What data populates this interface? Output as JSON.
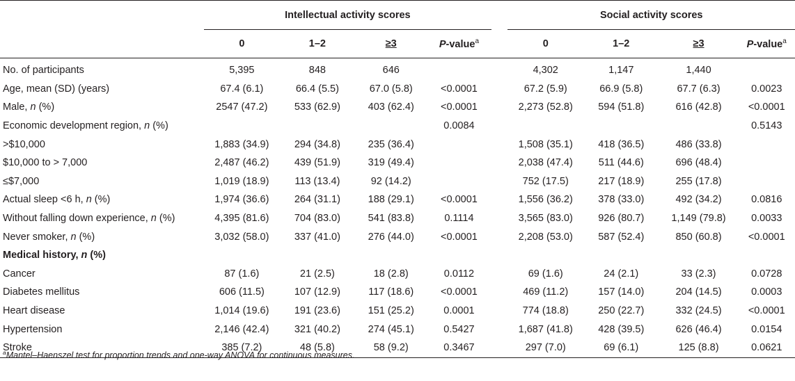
{
  "groups": {
    "intellectual": "Intellectual activity scores",
    "social": "Social activity scores"
  },
  "columns": {
    "c0": "0",
    "c12": "1–2",
    "c3": "≥3",
    "p_label": "P",
    "p_rest": "-value",
    "p_sup": "a"
  },
  "rows": [
    {
      "label": "No. of participants",
      "i0": "5,395",
      "i12": "848",
      "i3": "646",
      "ip": "",
      "s0": "4,302",
      "s12": "1,147",
      "s3": "1,440",
      "sp": ""
    },
    {
      "label": "Age, mean (SD) (years)",
      "i0": "67.4 (6.1)",
      "i12": "66.4 (5.5)",
      "i3": "67.0 (5.8)",
      "ip": "<0.0001",
      "s0": "67.2 (5.9)",
      "s12": "66.9 (5.8)",
      "s3": "67.7 (6.3)",
      "sp": "0.0023"
    },
    {
      "label_pre": "Male, ",
      "label_it": "n",
      "label_post": " (%)",
      "i0": "2547 (47.2)",
      "i12": "533 (62.9)",
      "i3": "403 (62.4)",
      "ip": "<0.0001",
      "s0": "2,273 (52.8)",
      "s12": "594 (51.8)",
      "s3": "616 (42.8)",
      "sp": "<0.0001"
    },
    {
      "label_pre": "Economic development region, ",
      "label_it": "n",
      "label_post": " (%)",
      "i0": "",
      "i12": "",
      "i3": "",
      "ip": "0.0084",
      "s0": "",
      "s12": "",
      "s3": "",
      "sp": "0.5143"
    },
    {
      "label": ">$10,000",
      "i0": "1,883 (34.9)",
      "i12": "294 (34.8)",
      "i3": "235 (36.4)",
      "ip": "",
      "s0": "1,508 (35.1)",
      "s12": "418 (36.5)",
      "s3": "486 (33.8)",
      "sp": ""
    },
    {
      "label": "$10,000 to > 7,000",
      "i0": "2,487 (46.2)",
      "i12": "439 (51.9)",
      "i3": "319 (49.4)",
      "ip": "",
      "s0": "2,038 (47.4)",
      "s12": "511 (44.6)",
      "s3": "696 (48.4)",
      "sp": ""
    },
    {
      "label": "≤$7,000",
      "i0": "1,019 (18.9)",
      "i12": "113 (13.4)",
      "i3": "92 (14.2)",
      "ip": "",
      "s0": "752 (17.5)",
      "s12": "217 (18.9)",
      "s3": "255 (17.8)",
      "sp": ""
    },
    {
      "label_pre": "Actual sleep <6 h, ",
      "label_it": "n",
      "label_post": " (%)",
      "i0": "1,974 (36.6)",
      "i12": "264 (31.1)",
      "i3": "188 (29.1)",
      "ip": "<0.0001",
      "s0": "1,556 (36.2)",
      "s12": "378 (33.0)",
      "s3": "492 (34.2)",
      "sp": "0.0816"
    },
    {
      "label_pre": "Without falling down experience, ",
      "label_it": "n",
      "label_post": " (%)",
      "i0": "4,395 (81.6)",
      "i12": "704 (83.0)",
      "i3": "541 (83.8)",
      "ip": "0.1114",
      "s0": "3,565 (83.0)",
      "s12": "926 (80.7)",
      "s3": "1,149 (79.8)",
      "sp": "0.0033"
    },
    {
      "label_pre": "Never smoker, ",
      "label_it": "n",
      "label_post": " (%)",
      "i0": "3,032 (58.0)",
      "i12": "337 (41.0)",
      "i3": "276 (44.0)",
      "ip": "<0.0001",
      "s0": "2,208 (53.0)",
      "s12": "587 (52.4)",
      "s3": "850 (60.8)",
      "sp": "<0.0001"
    },
    {
      "label_pre": "Medical history, ",
      "label_it": "n",
      "label_post": " (%)",
      "bold": true,
      "i0": "",
      "i12": "",
      "i3": "",
      "ip": "",
      "s0": "",
      "s12": "",
      "s3": "",
      "sp": ""
    },
    {
      "label": "Cancer",
      "i0": "87 (1.6)",
      "i12": "21 (2.5)",
      "i3": "18 (2.8)",
      "ip": "0.0112",
      "s0": "69 (1.6)",
      "s12": "24 (2.1)",
      "s3": "33 (2.3)",
      "sp": "0.0728"
    },
    {
      "label": "Diabetes mellitus",
      "i0": "606 (11.5)",
      "i12": "107 (12.9)",
      "i3": "117 (18.6)",
      "ip": "<0.0001",
      "s0": "469 (11.2)",
      "s12": "157 (14.0)",
      "s3": "204 (14.5)",
      "sp": "0.0003"
    },
    {
      "label": "Heart disease",
      "i0": "1,014 (19.6)",
      "i12": "191 (23.6)",
      "i3": "151 (25.2)",
      "ip": "0.0001",
      "s0": "774 (18.8)",
      "s12": "250 (22.7)",
      "s3": "332 (24.5)",
      "sp": "<0.0001"
    },
    {
      "label": "Hypertension",
      "i0": "2,146 (42.4)",
      "i12": "321 (40.2)",
      "i3": "274 (45.1)",
      "ip": "0.5427",
      "s0": "1,687 (41.8)",
      "s12": "428 (39.5)",
      "s3": "626 (46.4)",
      "sp": "0.0154"
    },
    {
      "label": "Stroke",
      "i0": "385 (7.2)",
      "i12": "48 (5.8)",
      "i3": "58 (9.2)",
      "ip": "0.3467",
      "s0": "297 (7.0)",
      "s12": "69 (6.1)",
      "s3": "125 (8.8)",
      "sp": "0.0621"
    }
  ],
  "footnote": {
    "sup": "a",
    "text": "Mantel–Haenszel test for proportion trends and one-way ANOVA for continuous measures."
  }
}
